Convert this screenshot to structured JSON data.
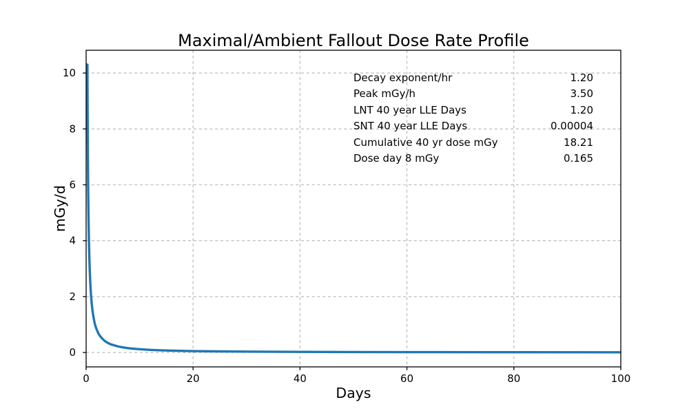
{
  "chart_data": {
    "type": "line",
    "title": "Maximal/Ambient Fallout Dose Rate Profile",
    "xlabel": "Days",
    "ylabel": "mGy/d",
    "xlim": [
      0,
      100
    ],
    "ylim": [
      -0.515,
      10.815
    ],
    "x_ticks": [
      0,
      20,
      40,
      60,
      80,
      100
    ],
    "y_ticks": [
      0,
      2,
      4,
      6,
      8,
      10
    ],
    "grid": {
      "on": true,
      "style": "dashed",
      "color": "#b2b2b2"
    },
    "legend": "none",
    "series": [
      {
        "name": "fallout-dose-rate",
        "color": "#1f77b4",
        "line_width": 3.4,
        "points": [
          [
            0.04,
            10.3
          ],
          [
            0.24,
            10.3
          ],
          [
            0.26,
            9.31
          ],
          [
            0.28,
            8.52
          ],
          [
            0.3,
            7.85
          ],
          [
            0.33,
            7.0
          ],
          [
            0.36,
            6.3
          ],
          [
            0.4,
            5.56
          ],
          [
            0.44,
            4.95
          ],
          [
            0.48,
            4.46
          ],
          [
            0.52,
            4.06
          ],
          [
            0.57,
            3.63
          ],
          [
            0.62,
            3.28
          ],
          [
            0.68,
            2.94
          ],
          [
            0.75,
            2.61
          ],
          [
            0.83,
            2.31
          ],
          [
            0.91,
            2.07
          ],
          [
            1.0,
            1.85
          ],
          [
            1.1,
            1.65
          ],
          [
            1.25,
            1.42
          ],
          [
            1.4,
            1.24
          ],
          [
            1.6,
            1.05
          ],
          [
            1.8,
            0.91
          ],
          [
            2.0,
            0.81
          ],
          [
            2.3,
            0.68
          ],
          [
            2.6,
            0.59
          ],
          [
            3.0,
            0.5
          ],
          [
            3.5,
            0.41
          ],
          [
            4.0,
            0.35
          ],
          [
            4.5,
            0.3
          ],
          [
            5.0,
            0.27
          ],
          [
            6.0,
            0.215
          ],
          [
            7.0,
            0.18
          ],
          [
            8.0,
            0.153
          ],
          [
            9.0,
            0.133
          ],
          [
            10,
            0.117
          ],
          [
            12,
            0.094
          ],
          [
            14,
            0.078
          ],
          [
            17,
            0.062
          ],
          [
            20,
            0.051
          ],
          [
            25,
            0.039
          ],
          [
            30,
            0.031
          ],
          [
            40,
            0.022
          ],
          [
            50,
            0.017
          ],
          [
            60,
            0.0136
          ],
          [
            75,
            0.0104
          ],
          [
            100,
            0.0074
          ]
        ]
      }
    ],
    "annotations": {
      "rows": [
        {
          "label": "Decay exponent/hr",
          "value": "1.20"
        },
        {
          "label": "Peak mGy/h",
          "value": "3.50"
        },
        {
          "label": "LNT 40 year LLE Days",
          "value": "1.20"
        },
        {
          "label": "SNT 40 year LLE Days",
          "value": "0.00004"
        },
        {
          "label": "Cumulative 40 yr dose mGy",
          "value": "18.21"
        },
        {
          "label": "Dose day 8 mGy",
          "value": "0.165"
        }
      ]
    }
  }
}
